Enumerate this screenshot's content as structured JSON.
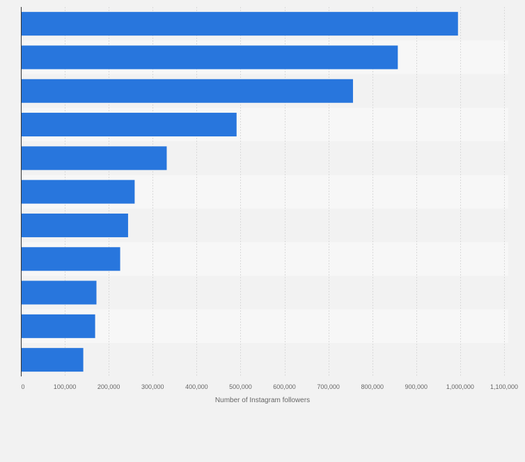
{
  "chart_data": {
    "type": "bar",
    "orientation": "horizontal",
    "title": "",
    "xlabel": "Number of Instagram followers",
    "ylabel": "",
    "xlim": [
      0,
      1100000
    ],
    "ticks": [
      0,
      100000,
      200000,
      300000,
      400000,
      500000,
      600000,
      700000,
      800000,
      900000,
      1000000,
      1100000
    ],
    "tick_labels": [
      "0",
      "100,000",
      "200,000",
      "300,000",
      "400,000",
      "500,000",
      "600,000",
      "700,000",
      "800,000",
      "900,000",
      "1,000,000",
      "1,100,000"
    ],
    "categories": [
      "",
      "",
      "",
      "",
      "",
      "",
      "",
      "",
      "",
      "",
      ""
    ],
    "values": [
      995000,
      858000,
      756000,
      491000,
      332000,
      259000,
      244000,
      226000,
      172000,
      169000,
      142000
    ],
    "grid": true,
    "colors": {
      "bar": "#2876dd",
      "band_dark": "#f2f2f2",
      "band_light": "#f7f7f7",
      "grid": "#d9d9d9",
      "axis": "#333333",
      "text": "#666666"
    }
  }
}
